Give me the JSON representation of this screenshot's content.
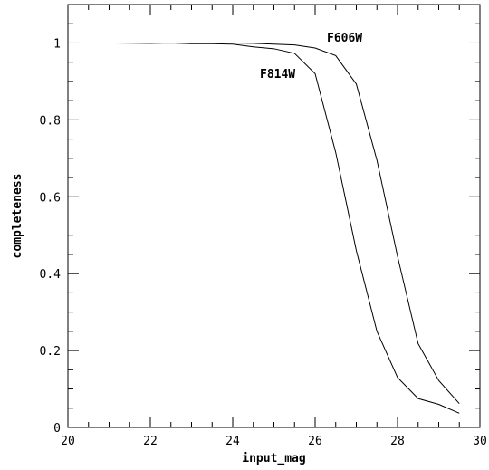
{
  "chart_data": {
    "type": "line",
    "title": "",
    "xlabel": "input_mag",
    "ylabel": "completeness",
    "xlim": [
      20,
      30
    ],
    "ylim": [
      0,
      1.1
    ],
    "xticks": [
      20,
      22,
      24,
      26,
      28,
      30
    ],
    "yticks": [
      0,
      0.2,
      0.4,
      0.6,
      0.8,
      1
    ],
    "xtick_labels": [
      "20",
      "22",
      "24",
      "26",
      "28",
      "30"
    ],
    "ytick_labels": [
      "0",
      "0.2",
      "0.4",
      "0.6",
      "0.8",
      "1"
    ],
    "grid": false,
    "legend": "none",
    "series": [
      {
        "name": "F606W",
        "x": [
          20,
          21,
          22,
          22.5,
          23,
          23.5,
          24,
          24.5,
          25,
          25.5,
          26,
          26.5,
          27,
          27.5,
          28,
          28.5,
          29,
          29.5
        ],
        "y": [
          1.0,
          1.0,
          1.0,
          1.0,
          1.0,
          1.0,
          1.0,
          0.999,
          0.997,
          0.995,
          0.987,
          0.967,
          0.893,
          0.695,
          0.445,
          0.218,
          0.122,
          0.062
        ]
      },
      {
        "name": "F814W",
        "x": [
          20,
          21,
          22,
          22.5,
          23,
          23.5,
          24,
          24.5,
          25,
          25.5,
          26,
          26.5,
          27,
          27.5,
          28,
          28.5,
          29,
          29.5
        ],
        "y": [
          1.0,
          1.0,
          0.999,
          1.0,
          0.998,
          0.998,
          0.997,
          0.99,
          0.985,
          0.973,
          0.92,
          0.715,
          0.46,
          0.25,
          0.13,
          0.075,
          0.06,
          0.037
        ]
      }
    ]
  }
}
